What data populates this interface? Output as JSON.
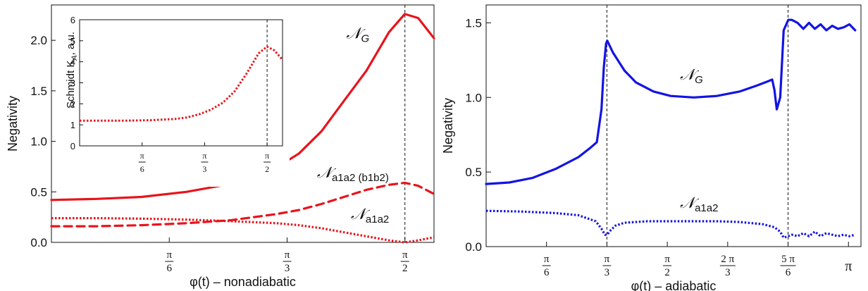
{
  "chart_data": [
    {
      "type": "line",
      "xlabel": "φ(t) – nonadiabatic",
      "ylabel": "Negativity",
      "xlim": [
        0,
        1.7
      ],
      "ylim": [
        0,
        2.35
      ],
      "xticks": [
        {
          "value": 0.5236,
          "num": "π",
          "den": "6"
        },
        {
          "value": 1.0472,
          "num": "π",
          "den": "3"
        },
        {
          "value": 1.5708,
          "num": "π",
          "den": "2"
        }
      ],
      "yticks": [
        "0.0",
        "0.5",
        "1.0",
        "1.5",
        "2.0"
      ],
      "ytick_values": [
        0,
        0.5,
        1.0,
        1.5,
        2.0
      ],
      "vline": 1.5708,
      "series": [
        {
          "id": "NG",
          "style": "solid",
          "color": "#e8141b",
          "x": [
            0.0,
            0.2,
            0.4,
            0.6,
            0.8,
            0.9,
            1.0,
            1.1,
            1.2,
            1.3,
            1.4,
            1.5,
            1.57,
            1.63,
            1.7
          ],
          "y": [
            0.42,
            0.43,
            0.45,
            0.5,
            0.58,
            0.64,
            0.74,
            0.88,
            1.1,
            1.4,
            1.7,
            2.08,
            2.26,
            2.22,
            2.02
          ]
        },
        {
          "id": "Nab",
          "style": "dashed",
          "color": "#e8141b",
          "x": [
            0.0,
            0.2,
            0.4,
            0.6,
            0.8,
            1.0,
            1.1,
            1.2,
            1.3,
            1.4,
            1.5,
            1.57,
            1.63,
            1.7
          ],
          "y": [
            0.16,
            0.16,
            0.17,
            0.19,
            0.22,
            0.28,
            0.32,
            0.38,
            0.45,
            0.52,
            0.57,
            0.59,
            0.56,
            0.48
          ]
        },
        {
          "id": "Na",
          "style": "dotted",
          "color": "#e8141b",
          "x": [
            0.0,
            0.2,
            0.4,
            0.6,
            0.8,
            1.0,
            1.1,
            1.2,
            1.3,
            1.4,
            1.5,
            1.57,
            1.63,
            1.7
          ],
          "y": [
            0.24,
            0.24,
            0.235,
            0.225,
            0.21,
            0.19,
            0.17,
            0.14,
            0.1,
            0.06,
            0.02,
            0.0,
            0.02,
            0.05
          ]
        }
      ],
      "annotations": [
        {
          "id": "ann-ng",
          "text": "𝒩G",
          "base": "𝒩",
          "sub": "G",
          "x": 1.31,
          "y": 2.02
        },
        {
          "id": "ann-nab",
          "text": "𝒩a1a2 (b1b2)",
          "base": "𝒩",
          "sub": "a1a2 (b1b2)",
          "x": 1.18,
          "y": 0.64
        },
        {
          "id": "ann-na",
          "text": "𝒩a1a2",
          "base": "𝒩",
          "sub": "a1a2",
          "x": 1.33,
          "y": 0.23
        }
      ],
      "inset": {
        "ylabel": "Schmidt K",
        "ylabel_sub": "A",
        "ylabel_suffix": ", a.u.",
        "xlim": [
          0,
          1.7
        ],
        "ylim": [
          0,
          6
        ],
        "yticks": [
          "0",
          "1",
          "2",
          "3",
          "4",
          "5",
          "6"
        ],
        "ytick_values": [
          0,
          1,
          2,
          3,
          4,
          5,
          6
        ],
        "xticks": [
          {
            "value": 0.5236,
            "num": "π",
            "den": "6"
          },
          {
            "value": 1.0472,
            "num": "π",
            "den": "3"
          },
          {
            "value": 1.5708,
            "num": "π",
            "den": "2"
          }
        ],
        "vline": 1.5708,
        "series": [
          {
            "id": "K",
            "style": "dotted",
            "color": "#e8141b",
            "x": [
              0.0,
              0.2,
              0.4,
              0.6,
              0.8,
              0.9,
              1.0,
              1.1,
              1.2,
              1.3,
              1.4,
              1.5,
              1.57,
              1.63,
              1.7
            ],
            "y": [
              1.2,
              1.2,
              1.2,
              1.22,
              1.28,
              1.35,
              1.5,
              1.72,
              2.05,
              2.6,
              3.45,
              4.4,
              4.72,
              4.55,
              4.1
            ]
          }
        ]
      }
    },
    {
      "type": "line",
      "xlabel": "φ(t) – adiabatic",
      "ylabel": "Negativity",
      "xlim": [
        0,
        3.25
      ],
      "ylim": [
        0,
        1.62
      ],
      "xticks": [
        {
          "value": 0.5236,
          "num": "π",
          "den": "6"
        },
        {
          "value": 1.0472,
          "num": "π",
          "den": "3"
        },
        {
          "value": 1.5708,
          "num": "π",
          "den": "2"
        },
        {
          "value": 2.0944,
          "num": "2 π",
          "den": "3"
        },
        {
          "value": 2.618,
          "num": "5 π",
          "den": "6"
        },
        {
          "value": 3.1416,
          "num": "π",
          "den": ""
        }
      ],
      "yticks": [
        "0.0",
        "0.5",
        "1.0",
        "1.5"
      ],
      "ytick_values": [
        0,
        0.5,
        1.0,
        1.5
      ],
      "vlines": [
        1.0472,
        2.618
      ],
      "series": [
        {
          "id": "NG2",
          "style": "solid",
          "color": "#1313e6",
          "x": [
            0.0,
            0.2,
            0.4,
            0.6,
            0.8,
            0.9,
            0.96,
            1.0,
            1.02,
            1.04,
            1.05,
            1.1,
            1.2,
            1.3,
            1.45,
            1.6,
            1.8,
            2.0,
            2.2,
            2.35,
            2.45,
            2.48,
            2.5,
            2.52,
            2.55,
            2.58,
            2.62,
            2.65,
            2.7,
            2.75,
            2.8,
            2.85,
            2.9,
            2.95,
            3.0,
            3.05,
            3.1,
            3.15,
            3.2
          ],
          "y": [
            0.42,
            0.43,
            0.46,
            0.52,
            0.6,
            0.66,
            0.7,
            0.92,
            1.2,
            1.36,
            1.38,
            1.3,
            1.18,
            1.1,
            1.04,
            1.01,
            1.0,
            1.01,
            1.04,
            1.08,
            1.11,
            1.12,
            1.05,
            0.92,
            1.0,
            1.45,
            1.52,
            1.52,
            1.5,
            1.46,
            1.5,
            1.46,
            1.49,
            1.45,
            1.48,
            1.46,
            1.47,
            1.49,
            1.45
          ]
        },
        {
          "id": "Na2",
          "style": "dotted",
          "color": "#1313e6",
          "x": [
            0.0,
            0.3,
            0.6,
            0.8,
            0.95,
            1.0,
            1.03,
            1.05,
            1.08,
            1.12,
            1.2,
            1.4,
            1.7,
            2.0,
            2.2,
            2.4,
            2.5,
            2.55,
            2.58,
            2.62,
            2.65,
            2.7,
            2.75,
            2.8,
            2.85,
            2.9,
            2.95,
            3.0,
            3.05,
            3.1,
            3.15,
            3.2
          ],
          "y": [
            0.24,
            0.235,
            0.225,
            0.21,
            0.17,
            0.12,
            0.08,
            0.08,
            0.11,
            0.14,
            0.16,
            0.17,
            0.17,
            0.17,
            0.165,
            0.15,
            0.13,
            0.1,
            0.06,
            0.07,
            0.08,
            0.07,
            0.09,
            0.07,
            0.1,
            0.07,
            0.09,
            0.08,
            0.07,
            0.08,
            0.07,
            0.08
          ]
        }
      ],
      "annotations": [
        {
          "id": "ann-ng2",
          "text": "𝒩G",
          "base": "𝒩",
          "sub": "G",
          "x": 1.68,
          "y": 1.12
        },
        {
          "id": "ann-na2",
          "text": "𝒩a1a2",
          "base": "𝒩",
          "sub": "a1a2",
          "x": 1.68,
          "y": 0.26
        }
      ]
    }
  ]
}
